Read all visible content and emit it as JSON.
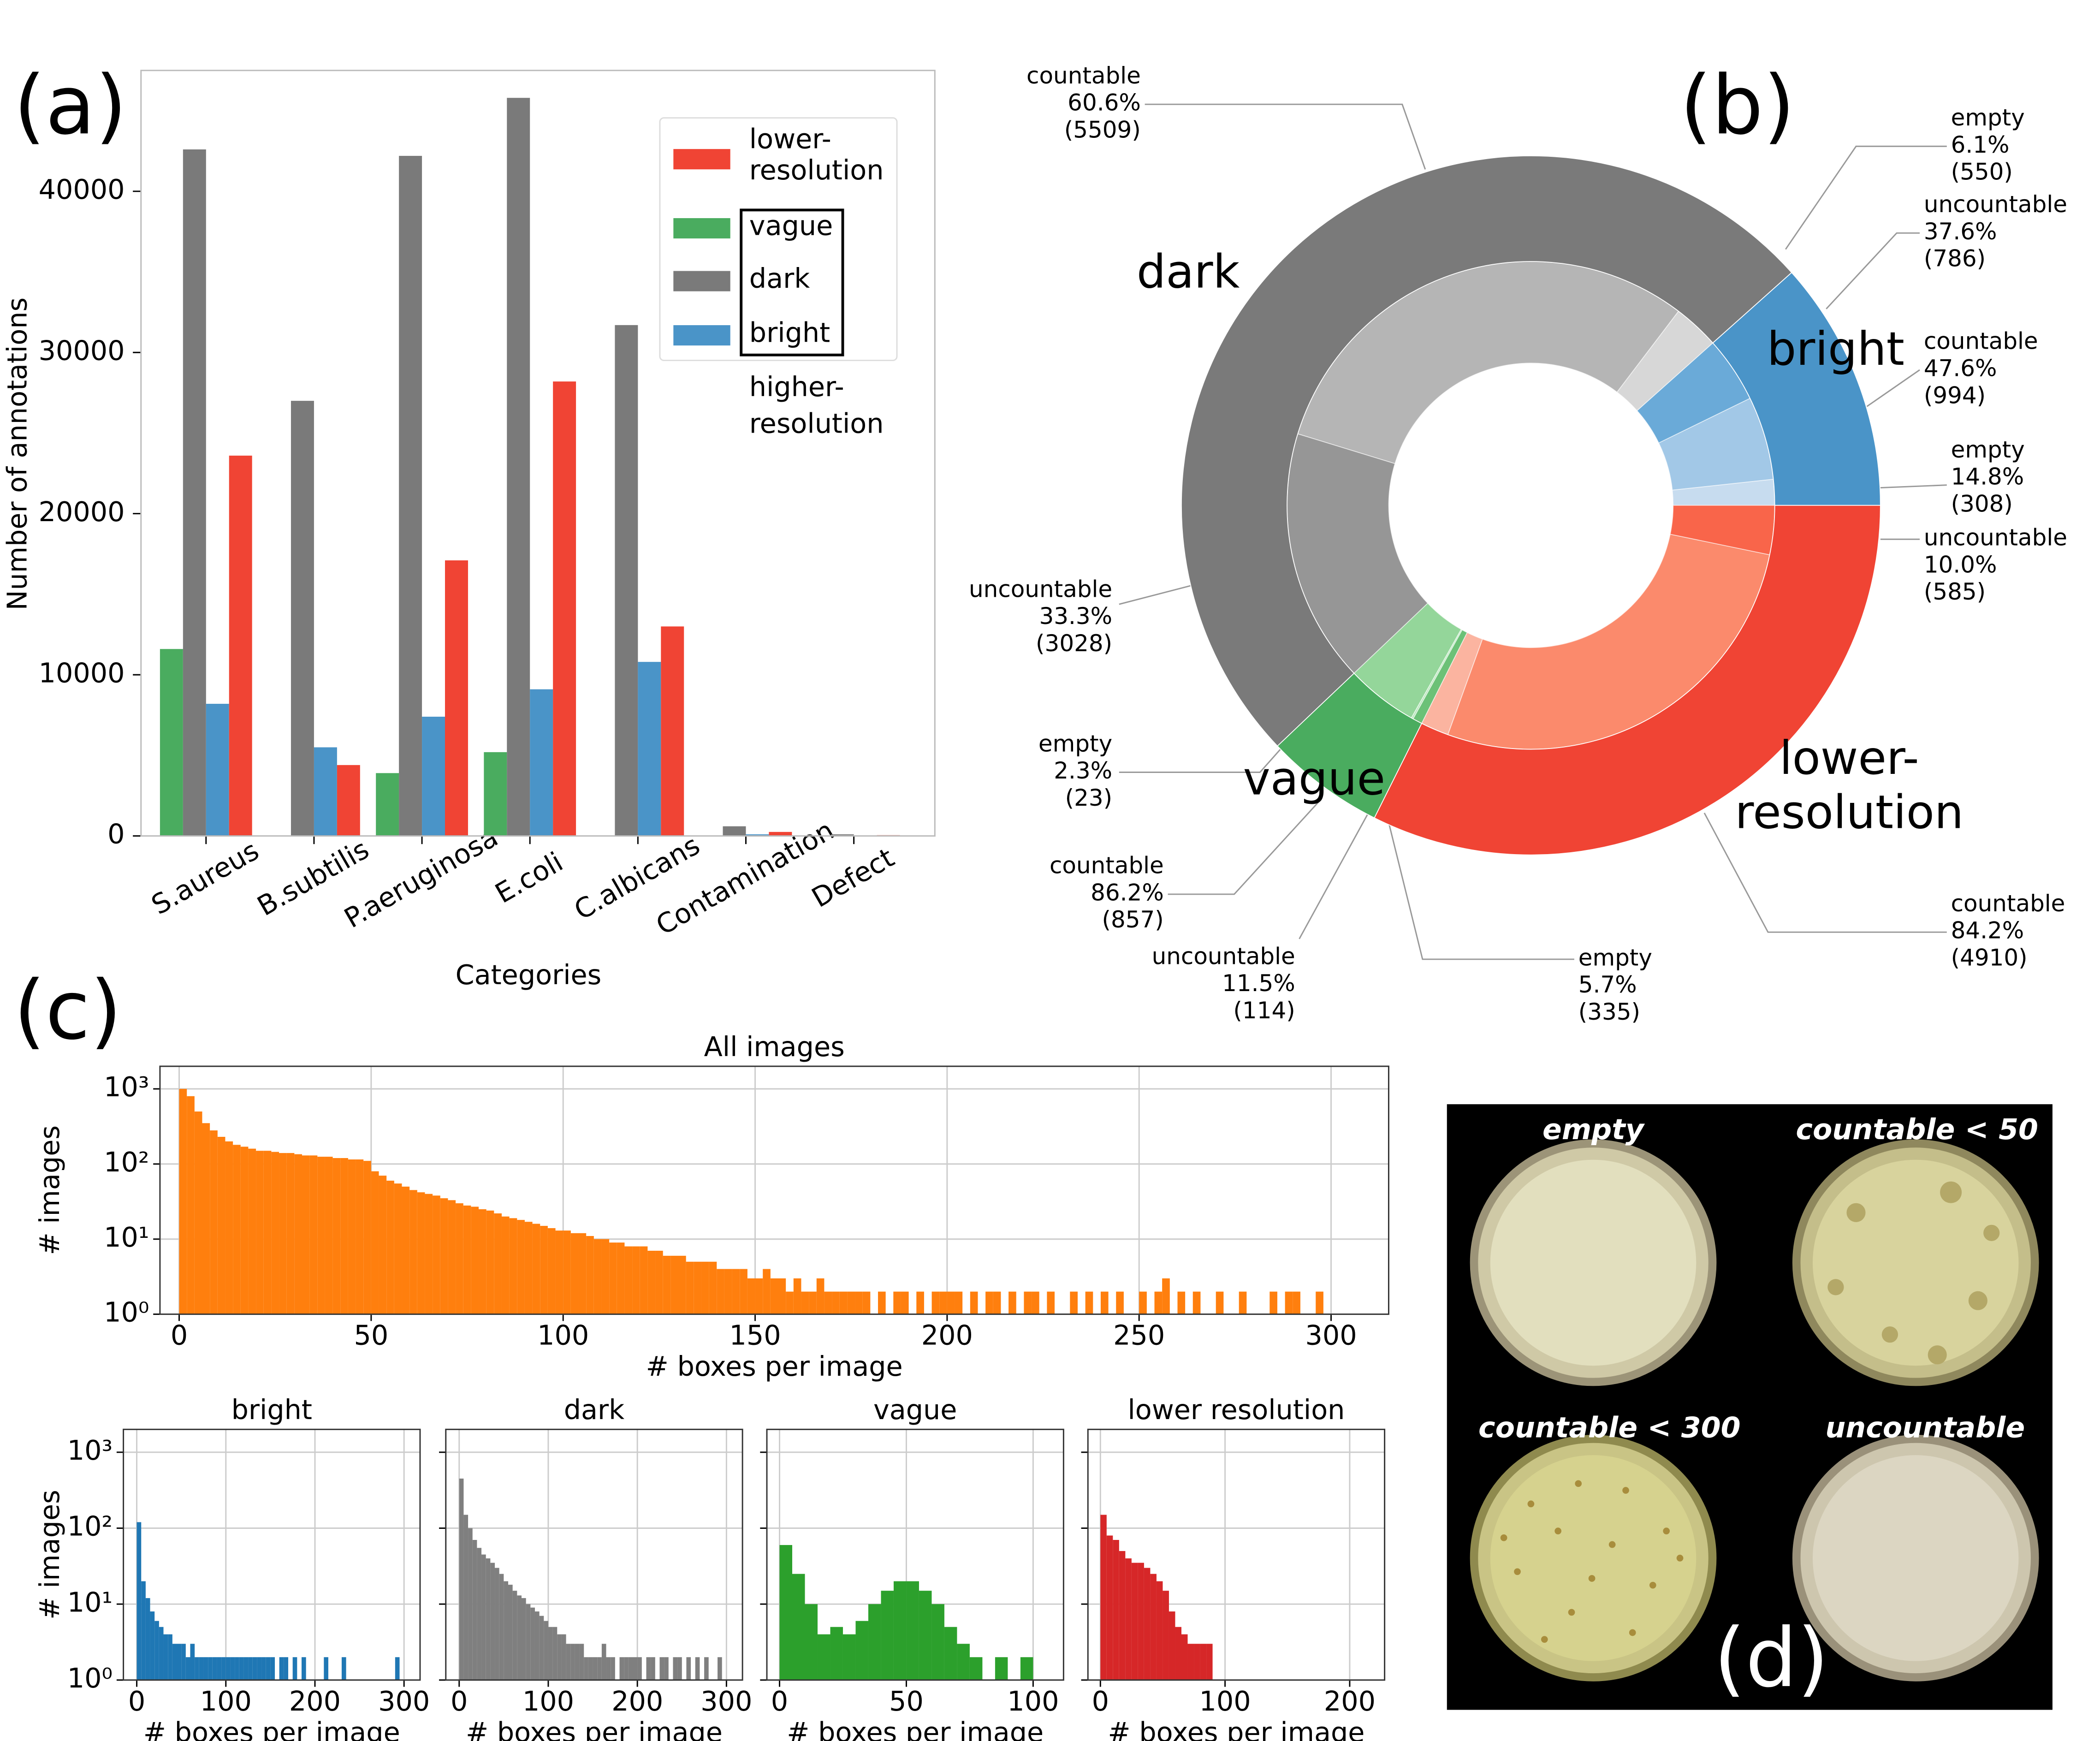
{
  "chart_data": [
    {
      "type": "bar",
      "panel_label": "(a)",
      "xlabel": "Categories",
      "ylabel": "Number of annotations",
      "categories": [
        "S.aureus",
        "B.subtilis",
        "P.aeruginosa",
        "E.coli",
        "C.albicans",
        "Contamination",
        "Defect"
      ],
      "series": [
        {
          "name": "vague",
          "color": "#4aac5f",
          "values": [
            11600,
            0,
            3900,
            5200,
            0,
            0,
            0
          ]
        },
        {
          "name": "dark",
          "color": "#7a7a7a",
          "values": [
            42600,
            27000,
            42200,
            45800,
            31700,
            600,
            100
          ]
        },
        {
          "name": "bright",
          "color": "#4a94c8",
          "values": [
            8200,
            5500,
            7400,
            9100,
            10800,
            100,
            0
          ]
        },
        {
          "name": "lower-resolution",
          "color": "#f04434",
          "values": [
            23600,
            4400,
            17100,
            28200,
            13000,
            250,
            50
          ]
        }
      ],
      "annotation": "higher-resolution",
      "ylim": [
        0,
        47500
      ],
      "yticks": [
        0,
        10000,
        20000,
        30000,
        40000
      ],
      "legend": "upper right"
    },
    {
      "type": "sunburst",
      "panel_label": "(b)",
      "groups": [
        {
          "name": "bright",
          "color": "#4a94c8",
          "subs": [
            {
              "name": "empty",
              "share": "14.8%",
              "value": 308,
              "value_label": "(308)",
              "color": "#c7dcef"
            },
            {
              "name": "countable",
              "share": "47.6%",
              "value": 994,
              "value_label": "(994)",
              "color": "#a2c8e7"
            },
            {
              "name": "uncountable",
              "share": "37.6%",
              "value": 786,
              "value_label": "(786)",
              "color": "#6aaad8"
            }
          ]
        },
        {
          "name": "dark",
          "color": "#7a7a7a",
          "subs": [
            {
              "name": "empty",
              "share": "6.1%",
              "value": 550,
              "value_label": "(550)",
              "color": "#d7d7d7"
            },
            {
              "name": "countable",
              "share": "60.6%",
              "value": 5509,
              "value_label": "(5509)",
              "color": "#b5b5b5"
            },
            {
              "name": "uncountable",
              "share": "33.3%",
              "value": 3028,
              "value_label": "(3028)",
              "color": "#969696"
            }
          ]
        },
        {
          "name": "vague",
          "color": "#4aac5f",
          "subs": [
            {
              "name": "countable",
              "share": "86.2%",
              "value": 857,
              "value_label": "(857)",
              "color": "#94d69a"
            },
            {
              "name": "empty",
              "share": "2.3%",
              "value": 23,
              "value_label": "(23)",
              "color": "#b9e6bc"
            },
            {
              "name": "uncountable",
              "share": "11.5%",
              "value": 114,
              "value_label": "(114)",
              "color": "#6cc177"
            }
          ]
        },
        {
          "name": "lower-resolution",
          "color": "#f04434",
          "subs": [
            {
              "name": "empty",
              "share": "5.7%",
              "value": 335,
              "value_label": "(335)",
              "color": "#fbb4a0"
            },
            {
              "name": "countable",
              "share": "84.2%",
              "value": 4910,
              "value_label": "(4910)",
              "color": "#fb8a6c"
            },
            {
              "name": "uncountable",
              "share": "10.0%",
              "value": 585,
              "value_label": "(585)",
              "color": "#f9654a"
            }
          ]
        }
      ]
    },
    {
      "type": "histogram",
      "panel_label": "(c)",
      "title": "All images",
      "xlabel": "# boxes per image",
      "ylabel": "# images",
      "color": "#ff7f0e",
      "log_y": true,
      "grid": true,
      "bins": [
        0,
        2,
        4,
        6,
        8,
        10,
        12,
        14,
        16,
        18,
        20,
        22,
        24,
        26,
        28,
        30,
        32,
        34,
        36,
        38,
        40,
        42,
        44,
        46,
        48,
        50,
        52,
        54,
        56,
        58,
        60,
        62,
        64,
        66,
        68,
        70,
        72,
        74,
        76,
        78,
        80,
        82,
        84,
        86,
        88,
        90,
        92,
        94,
        96,
        98,
        100,
        102,
        104,
        106,
        108,
        110,
        112,
        114,
        116,
        118,
        120,
        122,
        124,
        126,
        128,
        130,
        132,
        134,
        136,
        138,
        140,
        142,
        144,
        146,
        148,
        150,
        152,
        154,
        156,
        158,
        160,
        162,
        164,
        166,
        168,
        170,
        172,
        174,
        176,
        178,
        180,
        182,
        184,
        186,
        188,
        190,
        192,
        194,
        196,
        198,
        200,
        202,
        204,
        206,
        208,
        210,
        212,
        214,
        216,
        218,
        220,
        222,
        224,
        226,
        228,
        230,
        232,
        234,
        236,
        238,
        240,
        242,
        244,
        246,
        248,
        250,
        252,
        254,
        256,
        258,
        260,
        262,
        264,
        266,
        268,
        270,
        272,
        274,
        276,
        278,
        280,
        282,
        284,
        286,
        288,
        290,
        292,
        294,
        296,
        298,
        300
      ],
      "values": [
        1000,
        800,
        500,
        350,
        280,
        230,
        200,
        180,
        170,
        160,
        150,
        150,
        145,
        140,
        140,
        135,
        130,
        130,
        125,
        125,
        120,
        120,
        115,
        115,
        110,
        80,
        70,
        60,
        55,
        50,
        45,
        42,
        40,
        38,
        35,
        33,
        30,
        28,
        27,
        25,
        24,
        22,
        20,
        19,
        18,
        17,
        16,
        15,
        14,
        13,
        13,
        12,
        12,
        11,
        10,
        10,
        9,
        9,
        8,
        8,
        8,
        7,
        7,
        6,
        6,
        6,
        5,
        5,
        5,
        5,
        4,
        4,
        4,
        4,
        3,
        3,
        4,
        3,
        3,
        2,
        3,
        2,
        2,
        3,
        2,
        2,
        2,
        2,
        2,
        2,
        0,
        2,
        1,
        2,
        2,
        0,
        2,
        1,
        2,
        2,
        2,
        2,
        0,
        2,
        1,
        2,
        2,
        0,
        2,
        0,
        2,
        2,
        0,
        2,
        0,
        0,
        2,
        0,
        2,
        0,
        2,
        0,
        2,
        0,
        0,
        2,
        0,
        2,
        3,
        0,
        2,
        0,
        2,
        0,
        0,
        2,
        0,
        0,
        2,
        0,
        0,
        0,
        2,
        0,
        2,
        2,
        0,
        0,
        2,
        0
      ],
      "xlim": [
        -5,
        315
      ],
      "xticks": [
        0,
        50,
        100,
        150,
        200,
        250,
        300
      ],
      "ylim": [
        1,
        2000
      ],
      "yticks": [
        {
          "value": 1,
          "label": "10⁰"
        },
        {
          "value": 10,
          "label": "10¹"
        },
        {
          "value": 100,
          "label": "10²"
        },
        {
          "value": 1000,
          "label": "10³"
        }
      ]
    },
    {
      "type": "histogram",
      "title": "bright",
      "xlabel": "# boxes per image",
      "ylabel": "# images",
      "color": "#1f77b4",
      "log_y": true,
      "grid": true,
      "bins": [
        0,
        5,
        10,
        15,
        20,
        25,
        30,
        35,
        40,
        45,
        50,
        55,
        60,
        65,
        70,
        75,
        80,
        85,
        90,
        95,
        100,
        105,
        110,
        115,
        120,
        125,
        130,
        135,
        140,
        145,
        150,
        155,
        160,
        165,
        170,
        175,
        180,
        185,
        190,
        195,
        200,
        205,
        210,
        215,
        220,
        225,
        230,
        235,
        240,
        245,
        250,
        255,
        260,
        265,
        270,
        275,
        280,
        285,
        290,
        295,
        300
      ],
      "values": [
        120,
        20,
        12,
        8,
        6,
        5,
        4,
        4,
        3,
        3,
        3,
        2,
        3,
        2,
        2,
        2,
        2,
        2,
        2,
        2,
        2,
        2,
        2,
        2,
        2,
        2,
        2,
        2,
        2,
        2,
        2,
        0,
        2,
        2,
        0,
        2,
        0,
        2,
        0,
        0,
        0,
        0,
        2,
        0,
        0,
        0,
        2,
        0,
        0,
        0,
        0,
        0,
        0,
        0,
        0,
        0,
        0,
        0,
        2,
        0
      ],
      "xlim": [
        -15,
        318
      ],
      "xticks": [
        0,
        100,
        200,
        300
      ],
      "ylim": [
        1,
        2000
      ],
      "yticks": [
        {
          "value": 1,
          "label": "10⁰"
        },
        {
          "value": 10,
          "label": "10¹"
        },
        {
          "value": 100,
          "label": "10²"
        },
        {
          "value": 1000,
          "label": "10³"
        }
      ]
    },
    {
      "type": "histogram",
      "title": "dark",
      "xlabel": "# boxes per image",
      "color": "#7f7f7f",
      "log_y": true,
      "grid": true,
      "bins": [
        0,
        5,
        10,
        15,
        20,
        25,
        30,
        35,
        40,
        45,
        50,
        55,
        60,
        65,
        70,
        75,
        80,
        85,
        90,
        95,
        100,
        105,
        110,
        115,
        120,
        125,
        130,
        135,
        140,
        145,
        150,
        155,
        160,
        165,
        170,
        175,
        180,
        185,
        190,
        195,
        200,
        205,
        210,
        215,
        220,
        225,
        230,
        235,
        240,
        245,
        250,
        255,
        260,
        265,
        270,
        275,
        280,
        285,
        290,
        295,
        300
      ],
      "values": [
        450,
        150,
        100,
        70,
        55,
        45,
        40,
        35,
        30,
        25,
        20,
        18,
        15,
        13,
        12,
        10,
        9,
        8,
        7,
        6,
        5,
        5,
        4,
        4,
        3,
        3,
        3,
        3,
        2,
        2,
        2,
        2,
        3,
        2,
        2,
        1,
        2,
        2,
        2,
        2,
        2,
        1,
        2,
        2,
        0,
        2,
        2,
        1,
        2,
        2,
        0,
        2,
        1,
        2,
        0,
        2,
        0,
        0,
        2,
        0
      ],
      "xlim": [
        -15,
        318
      ],
      "xticks": [
        0,
        100,
        200,
        300
      ],
      "ylim": [
        1,
        2000
      ],
      "yticks": [
        1,
        10,
        100,
        1000
      ]
    },
    {
      "type": "histogram",
      "title": "vague",
      "xlabel": "# boxes per image",
      "color": "#2ca02c",
      "log_y": true,
      "grid": true,
      "bins": [
        0,
        5,
        10,
        15,
        20,
        25,
        30,
        35,
        40,
        45,
        50,
        55,
        60,
        65,
        70,
        75,
        80,
        85,
        90,
        95,
        100
      ],
      "values": [
        60,
        25,
        10,
        4,
        5,
        4,
        6,
        10,
        15,
        20,
        20,
        15,
        10,
        5,
        3,
        2,
        0,
        2,
        0,
        2
      ],
      "xlim": [
        -5,
        112
      ],
      "xticks": [
        0,
        50,
        100
      ],
      "ylim": [
        1,
        2000
      ],
      "yticks": [
        1,
        10,
        100,
        1000
      ]
    },
    {
      "type": "histogram",
      "title": "lower resolution",
      "xlabel": "# boxes per image",
      "color": "#d62728",
      "log_y": true,
      "grid": true,
      "bins": [
        0,
        5,
        10,
        15,
        20,
        25,
        30,
        35,
        40,
        45,
        50,
        55,
        60,
        65,
        70,
        75,
        80,
        85,
        90,
        95,
        100
      ],
      "values": [
        150,
        80,
        70,
        50,
        40,
        35,
        35,
        30,
        25,
        20,
        15,
        8,
        5,
        4,
        3,
        3,
        3,
        3,
        0,
        0
      ],
      "xlim": [
        -10,
        228
      ],
      "xticks": [
        0,
        100,
        200
      ],
      "ylim": [
        1,
        2000
      ],
      "yticks": [
        1,
        10,
        100,
        1000
      ]
    }
  ],
  "photo_panel": {
    "panel_label": "(d)",
    "labels": [
      "empty",
      "countable < 50",
      "countable < 300",
      "uncountable"
    ]
  }
}
